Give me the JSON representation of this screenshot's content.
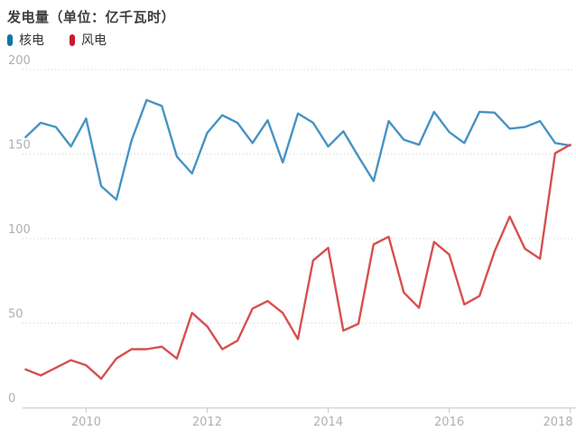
{
  "header": {
    "title": "发电量（单位：亿千瓦时）"
  },
  "legend": {
    "items": [
      {
        "label": "核电",
        "marker_color": "#0e74a8"
      },
      {
        "label": "风电",
        "marker_color": "#c91a30"
      }
    ]
  },
  "chart_data": {
    "type": "line",
    "title": "发电量（单位：亿千瓦时）",
    "xlabel": "",
    "ylabel": "",
    "x_years": [
      2009.0,
      2009.25,
      2009.5,
      2009.75,
      2010.0,
      2010.25,
      2010.5,
      2010.75,
      2011.0,
      2011.25,
      2011.5,
      2011.75,
      2012.0,
      2012.25,
      2012.5,
      2012.75,
      2013.0,
      2013.25,
      2013.5,
      2013.75,
      2014.0,
      2014.25,
      2014.5,
      2014.75,
      2015.0,
      2015.25,
      2015.5,
      2015.75,
      2016.0,
      2016.25,
      2016.5,
      2016.75,
      2017.0,
      2017.25,
      2017.5,
      2017.75,
      2018.0
    ],
    "series": [
      {
        "name": "核电",
        "color": "#4693c4",
        "values": [
          160,
          168.5,
          166,
          154.5,
          171,
          131,
          123,
          158,
          182,
          178.5,
          148.5,
          138.5,
          162.5,
          173,
          168.5,
          156.5,
          170,
          145,
          174,
          168.5,
          154.5,
          163.5,
          148.5,
          134,
          169.5,
          158.5,
          155.5,
          175,
          163,
          156.5,
          175,
          174.5,
          165,
          166,
          169.5,
          156.5,
          155
        ]
      },
      {
        "name": "风电",
        "color": "#d6504e",
        "values": [
          22.5,
          19,
          23.5,
          28,
          25,
          17,
          29,
          34.5,
          34.5,
          36,
          29,
          56,
          48,
          34.5,
          39.5,
          58.5,
          63,
          56,
          40.5,
          87,
          94.5,
          45.5,
          49.5,
          96.5,
          101,
          68,
          59,
          98,
          90.5,
          61,
          66,
          92.5,
          113,
          94,
          88,
          150.5,
          155.5
        ]
      }
    ],
    "xticks": [
      2010,
      2012,
      2014,
      2016,
      2018
    ],
    "xtick_labels": [
      "2010",
      "2012",
      "2014",
      "2016",
      "2018"
    ],
    "yticks": [
      0,
      50,
      100,
      150,
      200
    ],
    "ytick_labels": [
      "0",
      "50",
      "100",
      "150",
      "200"
    ],
    "xlim": [
      2008.95,
      2018.05
    ],
    "ylim": [
      0,
      200
    ],
    "grid": "horizontal-dotted",
    "legend_position": "top-left",
    "axis_color": "#c9c9c9",
    "gridline_color": "#d0d0d0",
    "tick_label_color": "#b0b0b0"
  }
}
